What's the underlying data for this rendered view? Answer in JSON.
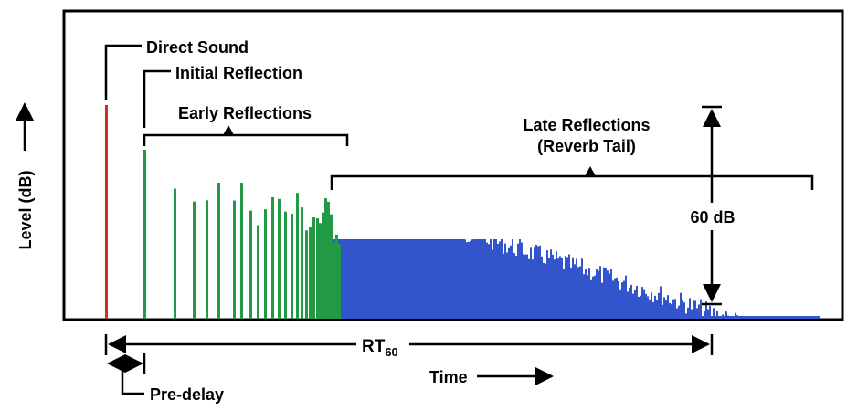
{
  "labels": {
    "direct_sound": "Direct Sound",
    "initial_reflection": "Initial Reflection",
    "early_reflections": "Early Reflections",
    "late_reflections_line1": "Late Reflections",
    "late_reflections_line2": "(Reverb Tail)",
    "decay_range": "60 dB",
    "rt_main": "RT",
    "rt_sub": "60",
    "pre_delay": "Pre-delay",
    "time_axis": "Time",
    "level_axis": "Level (dB)"
  },
  "colors": {
    "direct": "#cc3322",
    "early": "#229944",
    "late": "#3355cc",
    "annotation": "#000000"
  }
}
